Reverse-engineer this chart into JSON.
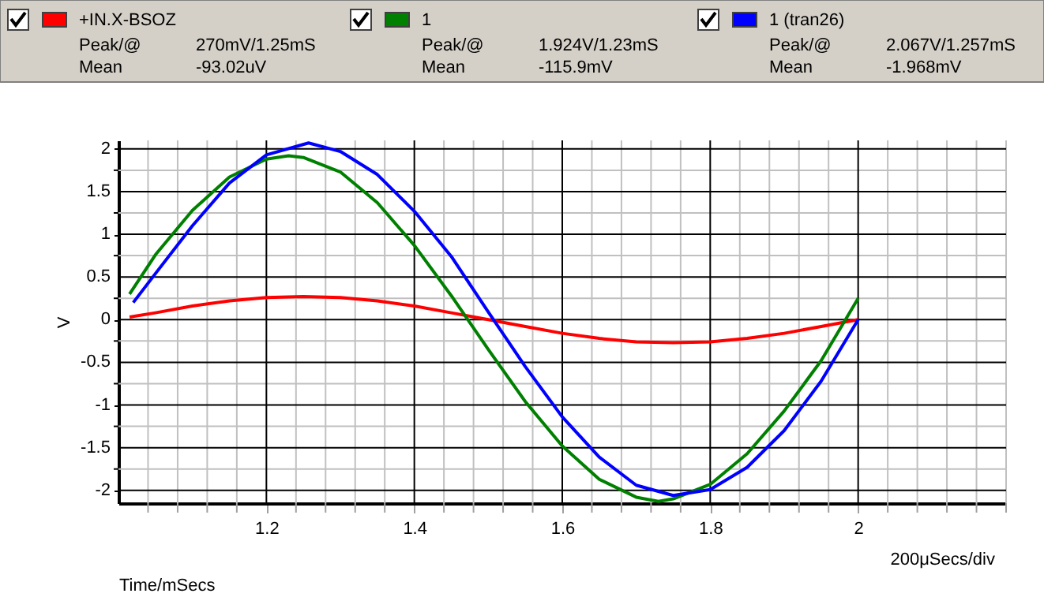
{
  "chart_data": {
    "type": "line",
    "xlabel": "Time/mSecs",
    "ylabel": "V",
    "xlim": [
      1.0,
      2.2
    ],
    "ylim": [
      -2.15,
      2.1
    ],
    "xticks": [
      {
        "value": 1.04,
        "label": null
      },
      {
        "value": 1.08,
        "label": null
      },
      {
        "value": 1.12,
        "label": null
      },
      {
        "value": 1.16,
        "label": null
      },
      1.2,
      {
        "value": 1.24,
        "label": null
      },
      {
        "value": 1.28,
        "label": null
      },
      {
        "value": 1.32,
        "label": null
      },
      {
        "value": 1.36,
        "label": null
      },
      1.4,
      {
        "value": 1.44,
        "label": null
      },
      {
        "value": 1.48,
        "label": null
      },
      {
        "value": 1.52,
        "label": null
      },
      {
        "value": 1.56,
        "label": null
      },
      1.6,
      {
        "value": 1.64,
        "label": null
      },
      {
        "value": 1.68,
        "label": null
      },
      {
        "value": 1.72,
        "label": null
      },
      {
        "value": 1.76,
        "label": null
      },
      1.8,
      {
        "value": 1.84,
        "label": null
      },
      {
        "value": 1.88,
        "label": null
      },
      {
        "value": 1.92,
        "label": null
      },
      {
        "value": 1.96,
        "label": null
      },
      2,
      {
        "value": 2.04,
        "label": null
      },
      {
        "value": 2.08,
        "label": null
      },
      {
        "value": 2.12,
        "label": null
      },
      {
        "value": 2.16,
        "label": null
      },
      {
        "value": 2.2,
        "label": null
      }
    ],
    "yticks": [
      -2,
      {
        "value": -1.75,
        "label": null
      },
      -1.5,
      {
        "value": -1.25,
        "label": null
      },
      -1,
      {
        "value": -0.75,
        "label": null
      },
      -0.5,
      {
        "value": -0.25,
        "label": null
      },
      0,
      {
        "value": 0.25,
        "label": null
      },
      0.5,
      {
        "value": 0.75,
        "label": null
      },
      1,
      {
        "value": 1.25,
        "label": null
      },
      1.5,
      {
        "value": 1.75,
        "label": null
      },
      2
    ],
    "grid": true,
    "legend": "top",
    "marker": "none",
    "line_style": "solid",
    "series": [
      {
        "name": "+IN.X-BSOZ",
        "color": "#ff0000",
        "x": [
          1.015,
          1.05,
          1.1,
          1.15,
          1.2,
          1.25,
          1.3,
          1.35,
          1.4,
          1.45,
          1.5,
          1.55,
          1.6,
          1.65,
          1.7,
          1.75,
          1.8,
          1.85,
          1.9,
          1.95,
          2.0
        ],
        "values": [
          0.03,
          0.08,
          0.16,
          0.22,
          0.26,
          0.27,
          0.26,
          0.22,
          0.16,
          0.08,
          0,
          -0.08,
          -0.16,
          -0.22,
          -0.26,
          -0.27,
          -0.26,
          -0.22,
          -0.16,
          -0.08,
          0
        ]
      },
      {
        "name": "1",
        "color": "#008000",
        "x": [
          1.015,
          1.05,
          1.1,
          1.15,
          1.2,
          1.23,
          1.25,
          1.3,
          1.35,
          1.4,
          1.45,
          1.5,
          1.55,
          1.6,
          1.65,
          1.7,
          1.73,
          1.75,
          1.8,
          1.85,
          1.9,
          1.95,
          2.0
        ],
        "values": [
          0.3,
          0.76,
          1.28,
          1.67,
          1.88,
          1.92,
          1.9,
          1.73,
          1.37,
          0.87,
          0.28,
          -0.35,
          -0.96,
          -1.48,
          -1.87,
          -2.08,
          -2.13,
          -2.1,
          -1.93,
          -1.57,
          -1.07,
          -0.48,
          0.25
        ]
      },
      {
        "name": "1 (tran26)",
        "color": "#0000ff",
        "x": [
          1.02,
          1.05,
          1.1,
          1.15,
          1.2,
          1.257,
          1.3,
          1.35,
          1.4,
          1.45,
          1.5,
          1.55,
          1.6,
          1.65,
          1.7,
          1.75,
          1.8,
          1.85,
          1.9,
          1.95,
          2.0
        ],
        "values": [
          0.2,
          0.54,
          1.1,
          1.6,
          1.93,
          2.07,
          1.97,
          1.7,
          1.27,
          0.74,
          0.09,
          -0.55,
          -1.14,
          -1.61,
          -1.94,
          -2.06,
          -1.99,
          -1.73,
          -1.3,
          -0.72,
          0
        ]
      }
    ],
    "annotations": [
      "Peak/@",
      "270mV/1.25mS",
      "Mean",
      "-93.02uV",
      "Peak/@",
      "1.924V/1.23mS",
      "Mean",
      "-115.9mV",
      "Peak/@",
      "2.067V/1.257mS",
      "Mean",
      "-1.968mV",
      "200μSecs/div"
    ]
  }
}
